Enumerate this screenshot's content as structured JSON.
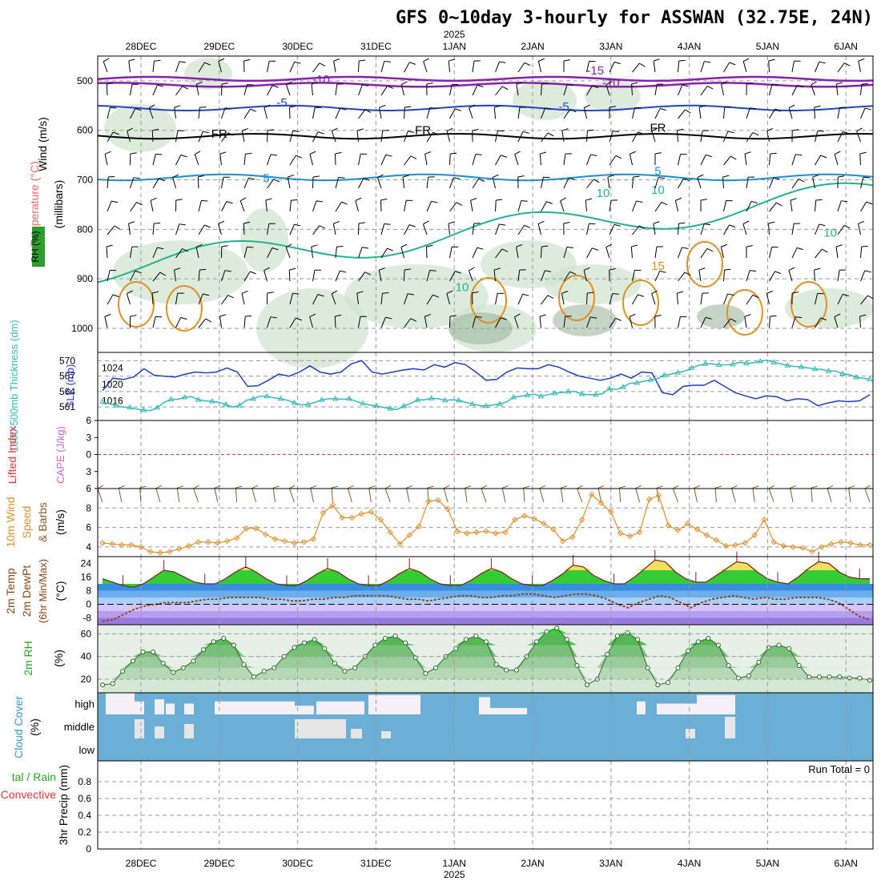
{
  "title": "GFS 0~10day 3-hourly for ASSWAN (32.75E, 24N)",
  "year": "2025",
  "days": [
    "28DEC",
    "29DEC",
    "30DEC",
    "31DEC",
    "1JAN",
    "2JAN",
    "3JAN",
    "4JAN",
    "5JAN",
    "6JAN"
  ],
  "run_total": "Run Total = 0",
  "colors": {
    "dew": "#8b4513",
    "temp_fill": "#33cc33",
    "rh_fill": "#33bb33",
    "cloud": "#6baed6",
    "slp": "#1f3fbf",
    "thick": "#33bbbb",
    "wind10": "#e0902a"
  },
  "chart_data": [
    {
      "type": "heatmap",
      "name": "upper-air",
      "ylabel_parts": [
        "Wind (m/s)",
        "Temperature (°C)",
        "RH (%)",
        "(millibars)"
      ],
      "yticks": [
        500,
        600,
        700,
        800,
        900,
        1000
      ],
      "ylim": [
        1000,
        450
      ],
      "isotherm_labels": [
        {
          "text": "-15",
          "day": 5.8,
          "p": 487
        },
        {
          "text": "-10",
          "day": 2.3,
          "p": 505
        },
        {
          "text": "-10",
          "day": 6.0,
          "p": 512
        },
        {
          "text": "-5",
          "day": 1.8,
          "p": 552
        },
        {
          "text": "-5",
          "day": 5.4,
          "p": 560
        },
        {
          "text": "FR",
          "day": 1.0,
          "p": 615
        },
        {
          "text": "FR",
          "day": 3.6,
          "p": 608
        },
        {
          "text": "FR",
          "day": 6.6,
          "p": 603
        },
        {
          "text": "5",
          "day": 1.6,
          "p": 705
        },
        {
          "text": "5",
          "day": 6.6,
          "p": 690
        },
        {
          "text": "10",
          "day": 4.1,
          "p": 925
        },
        {
          "text": "10",
          "day": 6.6,
          "p": 728
        },
        {
          "text": "15",
          "day": 6.6,
          "p": 882
        },
        {
          "text": "10",
          "day": 5.9,
          "p": 735
        },
        {
          "text": "10",
          "day": 8.8,
          "p": 815
        }
      ]
    },
    {
      "type": "line",
      "name": "slp-thickness",
      "ylabel_left": "1000-500mb Thickness (dm)",
      "ylabel_right": "SLP (mb)",
      "yticks_left": [
        561,
        564,
        567,
        570
      ],
      "yticks_right": [
        1016,
        1020,
        1024
      ],
      "series": [
        {
          "name": "SLP (mb)",
          "axis": "right",
          "values": [
            1018.5,
            1021.5,
            1021.2,
            1021.8,
            1023.8,
            1022.2,
            1022.0,
            1021.8,
            1022.5,
            1023.0,
            1022.8,
            1023.0,
            1024.0,
            1023.0,
            1019.5,
            1019.7,
            1021.0,
            1022.5,
            1022.0,
            1023.0,
            1024.5,
            1023.0,
            1022.5,
            1023.0,
            1025.0,
            1025.8,
            1023.0,
            1022.5,
            1023.0,
            1023.5,
            1023.8,
            1023.5,
            1024.8,
            1024.2,
            1025.3,
            1024.8,
            1023.0,
            1021.0,
            1021.2,
            1023.0,
            1024.0,
            1023.8,
            1023.8,
            1024.8,
            1024.2,
            1023.0,
            1022.0,
            1021.5,
            1021.0,
            1021.5,
            1022.5,
            1021.5,
            1023.0,
            1022.8,
            1018.0,
            1017.5,
            1019.5,
            1019.8,
            1019.8,
            1021.0,
            1019.5,
            1018.0,
            1017.2,
            1016.5,
            1017.2,
            1017.0,
            1016.0,
            1016.5,
            1016.3,
            1014.8,
            1015.5,
            1016.0,
            1015.8,
            1016.0,
            1017.5
          ]
        },
        {
          "name": "1000-500mb Thickness (dm)",
          "axis": "left",
          "values": [
            562.0,
            561.6,
            561.3,
            561.0,
            560.9,
            560.6,
            560.4,
            560.3,
            560.9,
            561.9,
            562.5,
            562.5,
            562.9,
            563.0,
            562.4,
            562.2,
            562.1,
            561.9,
            561.5,
            561.0,
            561.3,
            562.3,
            562.6,
            563.1,
            563.1,
            562.8,
            562.6,
            562.3,
            561.8,
            561.4,
            561.5,
            561.9,
            562.4,
            562.6,
            562.6,
            562.5,
            562.6,
            562.1,
            561.7,
            561.4,
            561.2,
            560.9,
            560.7,
            560.5,
            561.2,
            561.7,
            562.4,
            562.4,
            562.7,
            562.6,
            562.3,
            562.4,
            562.3,
            561.9,
            561.6,
            561.3,
            561.2,
            561.4,
            561.6,
            562.0,
            562.9,
            563.1,
            563.3,
            563.5,
            563.1,
            563.4,
            563.7,
            563.8,
            564.0,
            564.0,
            563.5,
            563.4,
            563.4,
            563.6,
            564.6,
            564.4,
            564.9,
            565.6,
            565.7,
            566.0,
            566.3,
            566.5,
            567.2,
            567.4,
            567.7,
            568.0,
            568.6,
            569.1,
            569.4,
            569.4,
            569.2,
            569.2,
            569.3,
            569.7,
            569.5,
            569.6,
            569.9,
            570.1,
            569.7,
            569.4,
            569.1,
            568.9,
            568.8,
            568.6,
            568.4,
            568.3,
            568.0,
            568.0,
            567.5,
            567.3,
            566.8,
            566.6,
            566.4
          ]
        }
      ]
    },
    {
      "type": "line",
      "name": "cape-li",
      "ylabel_left": "Lifted Index",
      "ylabel_right": "CAPE (J/kg)",
      "yticks": [
        "-6",
        "-3",
        "0",
        "3",
        "6"
      ],
      "ylim": [
        6,
        -6
      ],
      "series": []
    },
    {
      "type": "line",
      "name": "wind10",
      "ylabel": "10m Wind Speed & Barbs (m/s)",
      "yticks": [
        4,
        6,
        8
      ],
      "series": [
        {
          "name": "10m Wind Speed",
          "values": [
            4.4,
            4.3,
            4.2,
            4.2,
            4.0,
            3.5,
            3.4,
            3.5,
            3.8,
            4.1,
            4.5,
            4.5,
            4.4,
            4.6,
            4.9,
            5.9,
            5.9,
            5.3,
            4.8,
            4.6,
            4.4,
            4.5,
            4.8,
            7.5,
            8.3,
            7.0,
            7.0,
            7.4,
            7.6,
            6.8,
            5.5,
            4.3,
            5.2,
            6.1,
            8.7,
            8.8,
            7.9,
            5.6,
            5.4,
            5.5,
            5.6,
            5.4,
            5.5,
            6.8,
            7.2,
            6.9,
            6.4,
            5.8,
            4.6,
            5.0,
            6.8,
            9.4,
            8.5,
            7.6,
            5.4,
            5.1,
            5.5,
            8.9,
            9.3,
            6.2,
            5.7,
            6.4,
            5.8,
            5.2,
            4.7,
            4.1,
            4.2,
            4.4,
            5.2,
            6.8,
            4.5,
            4.1,
            4.0,
            3.9,
            3.5,
            4.0,
            4.3,
            4.5,
            4.4,
            4.2,
            4.2
          ]
        }
      ]
    },
    {
      "type": "area",
      "name": "temp2m",
      "ylabel": "2m Temp 2m DewPt (6hr Min/Max) (°C)",
      "yticks": [
        -8,
        0,
        8,
        16,
        24
      ],
      "ylim": [
        -12,
        28
      ],
      "series": [
        {
          "name": "2m Temp",
          "values": [
            15,
            13,
            11,
            10,
            12,
            16,
            20,
            19,
            16,
            13,
            12,
            12,
            15,
            19,
            22,
            19,
            15,
            12,
            11,
            11,
            14,
            18,
            21,
            19,
            15,
            12,
            11,
            11,
            14,
            18,
            21,
            19,
            15,
            12,
            11,
            11,
            14,
            18,
            21,
            19,
            15,
            12,
            11,
            11,
            14,
            18,
            23,
            22,
            17,
            14,
            12,
            12,
            16,
            21,
            26,
            25,
            19,
            15,
            13,
            13,
            17,
            21,
            25,
            24,
            19,
            15,
            13,
            12,
            16,
            21,
            25,
            24,
            19,
            16,
            15,
            15
          ]
        },
        {
          "name": "2m DewPt",
          "values": [
            -10,
            -9,
            -6,
            -3,
            -1,
            0,
            1,
            1,
            1,
            2,
            3,
            3,
            4,
            4,
            4,
            4,
            3,
            3,
            2,
            2,
            3,
            3,
            4,
            4,
            5,
            5,
            5,
            5,
            4,
            3,
            3,
            2,
            3,
            4,
            5,
            5,
            4,
            4,
            5,
            5,
            6,
            6,
            5,
            4,
            5,
            6,
            6,
            5,
            3,
            0,
            -2,
            1,
            3,
            5,
            4,
            1,
            -2,
            1,
            3,
            4,
            5,
            4,
            3,
            4,
            3,
            3,
            4,
            4,
            4,
            3,
            1,
            -3,
            -7,
            -9
          ]
        }
      ]
    },
    {
      "type": "area",
      "name": "rh2m",
      "ylabel": "2m RH (%)",
      "yticks": [
        20,
        40,
        60
      ],
      "ylim": [
        8,
        68
      ],
      "series": [
        {
          "name": "2m RH",
          "values": [
            15,
            16,
            27,
            36,
            44,
            44,
            34,
            26,
            30,
            36,
            46,
            53,
            56,
            50,
            33,
            22,
            27,
            30,
            40,
            48,
            52,
            55,
            47,
            34,
            27,
            30,
            40,
            50,
            56,
            58,
            52,
            39,
            25,
            30,
            40,
            47,
            55,
            58,
            53,
            33,
            28,
            28,
            40,
            53,
            62,
            65,
            55,
            32,
            15,
            20,
            42,
            58,
            61,
            55,
            30,
            15,
            17,
            30,
            45,
            53,
            56,
            50,
            32,
            21,
            23,
            35,
            48,
            50,
            47,
            32,
            22,
            22,
            22,
            22,
            21,
            21,
            19
          ]
        }
      ]
    },
    {
      "type": "bar",
      "name": "cloud",
      "ylabel": "Cloud Cover (%)",
      "levels": [
        "high",
        "middle",
        "low"
      ]
    },
    {
      "type": "bar",
      "name": "precip",
      "ylabel": "3hr Precip (mm)",
      "ylabel2": "Total / Rain Convective",
      "yticks": [
        0,
        0.2,
        0.4,
        0.6,
        0.8
      ],
      "ylim": [
        0,
        1.0
      ],
      "values": []
    }
  ]
}
